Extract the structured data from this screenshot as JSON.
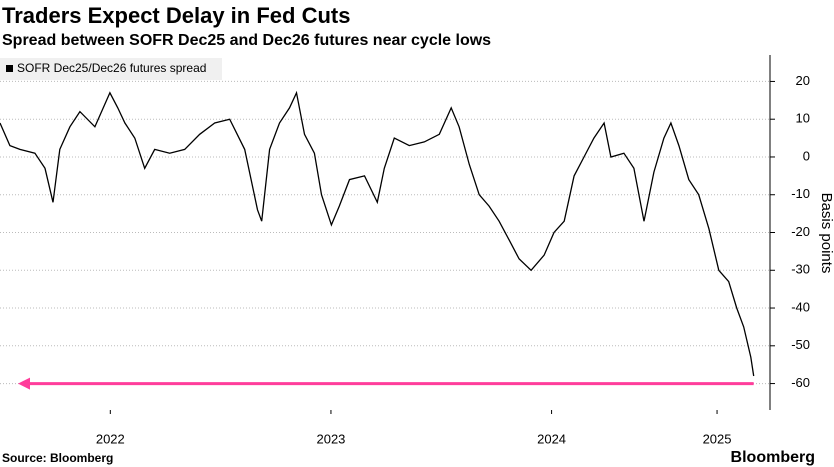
{
  "chart_data": {
    "type": "line",
    "title": "Traders Expect Delay in Fed Cuts",
    "subtitle": "Spread between SOFR Dec25 and Dec26 futures near cycle lows",
    "y_label": "Basis points",
    "source": "Source: Bloomberg",
    "brand": "Bloomberg",
    "x": [
      2022.0,
      2022.045,
      2022.09,
      2022.158,
      2022.204,
      2022.24,
      2022.271,
      2022.317,
      2022.362,
      2022.43,
      2022.498,
      2022.534,
      2022.566,
      2022.611,
      2022.656,
      2022.701,
      2022.769,
      2022.837,
      2022.905,
      2022.973,
      2023.041,
      2023.109,
      2023.167,
      2023.186,
      2023.222,
      2023.267,
      2023.312,
      2023.344,
      2023.38,
      2023.425,
      2023.457,
      2023.502,
      2023.538,
      2023.584,
      2023.652,
      2023.71,
      2023.742,
      2023.787,
      2023.855,
      2023.923,
      2023.991,
      2024.045,
      2024.081,
      2024.127,
      2024.172,
      2024.217,
      2024.262,
      2024.308,
      2024.353,
      2024.407,
      2024.466,
      2024.511,
      2024.557,
      2024.602,
      2024.647,
      2024.692,
      2024.738,
      2024.769,
      2024.828,
      2024.873,
      2024.919,
      2024.964,
      2025.009,
      2025.041,
      2025.077,
      2025.122,
      2025.167,
      2025.213,
      2025.258,
      2025.303,
      2025.339,
      2025.371,
      2025.403,
      2025.416
    ],
    "series": [
      {
        "name": "SOFR Dec25/Dec26 futures spread",
        "color": "#000000",
        "values": [
          9,
          3,
          2,
          1,
          -3,
          -12,
          2,
          8,
          12,
          8,
          17,
          13,
          9,
          5,
          -3,
          2,
          1,
          2,
          6,
          9,
          10,
          2,
          -14,
          -17,
          2,
          9,
          13,
          17,
          6,
          1,
          -10,
          -18,
          -13,
          -6,
          -5,
          -12,
          -3,
          5,
          3,
          4,
          6,
          13,
          8,
          -2,
          -10,
          -13,
          -17,
          -22,
          -27,
          -30,
          -26,
          -20,
          -17,
          -5,
          0,
          5,
          9,
          0,
          1,
          -3,
          -17,
          -4,
          5,
          9,
          3,
          -6,
          -10,
          -19,
          -30,
          -33,
          -40,
          -45,
          -53,
          -58
        ]
      }
    ],
    "reference_line": -60,
    "reference_color": "#ff3d9b",
    "xlim": [
      2022.0,
      2025.49
    ],
    "xticks": [
      {
        "value": 2022.5,
        "label": "2022"
      },
      {
        "value": 2023.5,
        "label": "2023"
      },
      {
        "value": 2024.5,
        "label": "2024"
      },
      {
        "value": 2025.25,
        "label": "2025"
      }
    ],
    "ylim": [
      -67,
      27
    ],
    "yticks": [
      20,
      10,
      0,
      -10,
      -20,
      -30,
      -40,
      -50,
      -60
    ],
    "grid": true
  }
}
